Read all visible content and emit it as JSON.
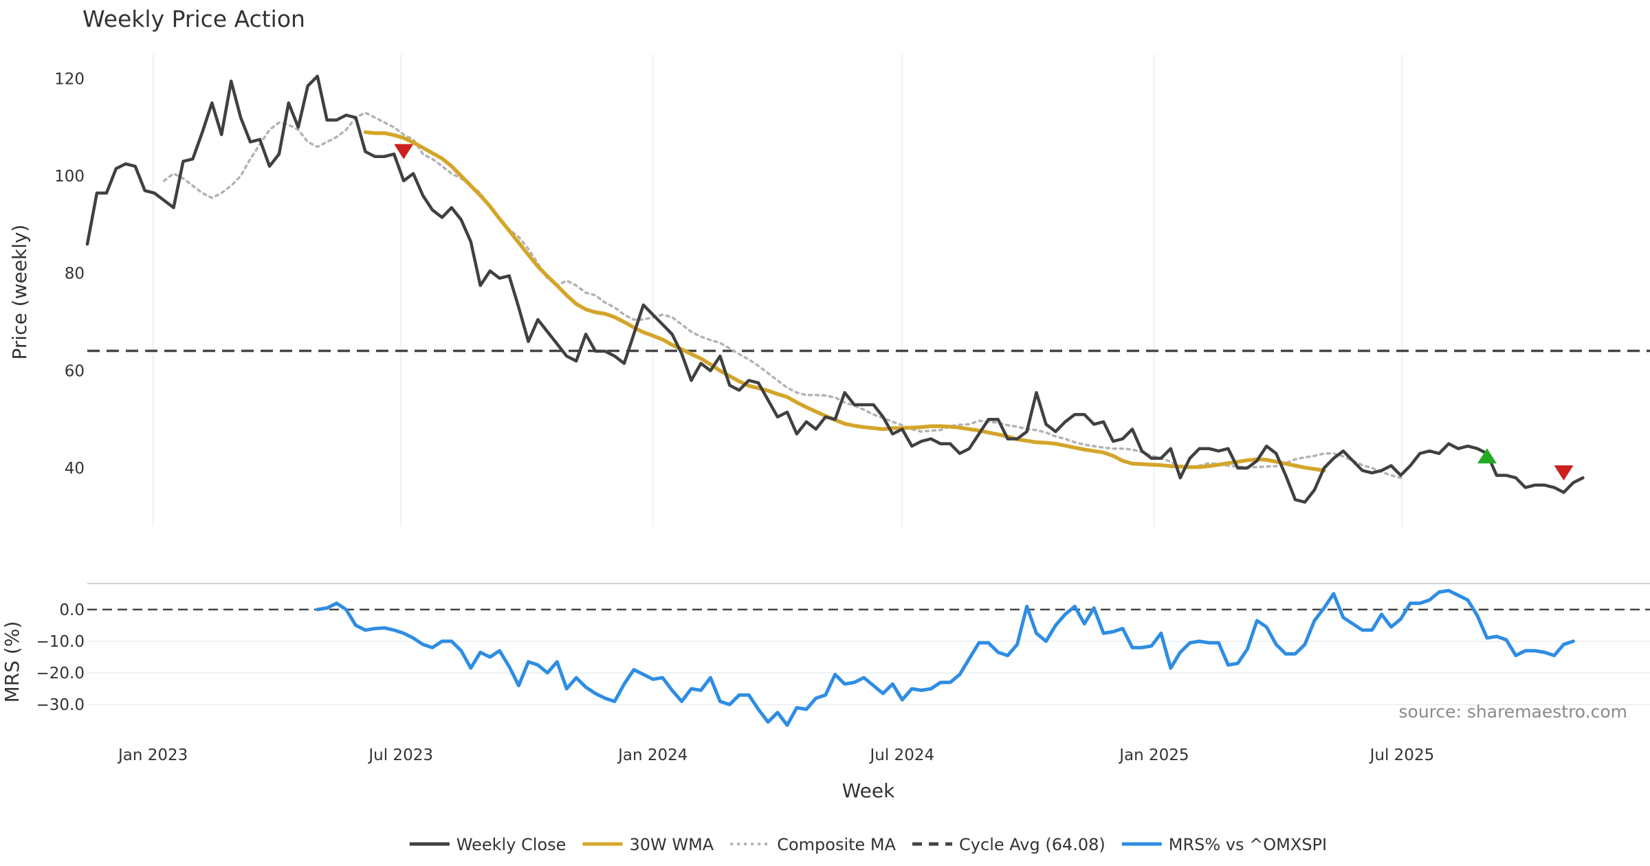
{
  "chart_data": [
    {
      "type": "line",
      "title": "Weekly Price Action",
      "xlabel": "Week",
      "ylabel": "Price (weekly)",
      "ylim": [
        28,
        125
      ],
      "yticks": [
        40,
        60,
        80,
        100,
        120
      ],
      "xlim": [
        "2022-11-14",
        "2025-12-29"
      ],
      "xticks": [
        {
          "date": "2023-01-01",
          "label": "Jan 2023"
        },
        {
          "date": "2023-07-01",
          "label": "Jul 2023"
        },
        {
          "date": "2024-01-01",
          "label": "Jan 2024"
        },
        {
          "date": "2024-07-01",
          "label": "Jul 2024"
        },
        {
          "date": "2025-01-01",
          "label": "Jan 2025"
        },
        {
          "date": "2025-07-01",
          "label": "Jul 2025"
        }
      ],
      "start_date": "2022-11-14",
      "interval_days": 7,
      "series": [
        {
          "name": "Weekly Close",
          "color": "#404040",
          "offset": 0,
          "values": [
            86,
            96.5,
            96.5,
            101.5,
            102.5,
            102,
            97,
            96.5,
            95,
            93.5,
            103,
            103.5,
            109,
            115,
            108.5,
            119.5,
            112,
            107,
            107.5,
            102,
            104.5,
            115,
            110,
            118.5,
            120.5,
            111.5,
            111.5,
            112.5,
            112,
            105,
            104,
            104,
            104.5,
            99,
            100.5,
            96,
            93,
            91.5,
            93.5,
            91,
            86.5,
            77.5,
            80.5,
            79,
            79.5,
            73,
            66,
            70.5,
            68,
            65.5,
            63,
            62,
            67.5,
            64,
            64,
            63,
            61.5,
            67.5,
            73.5,
            71.5,
            69.5,
            67.5,
            63.5,
            58,
            61.5,
            60,
            63,
            57,
            56,
            58,
            57.5,
            54,
            50.5,
            51.5,
            47,
            49.5,
            48,
            50.5,
            50,
            55.5,
            53,
            53,
            53,
            50.5,
            47,
            48,
            44.5,
            45.5,
            46,
            45,
            45,
            43,
            44,
            47,
            50,
            50,
            46,
            46,
            47.5,
            55.5,
            49,
            47.5,
            49.5,
            51,
            51,
            49,
            49.5,
            45.5,
            46,
            48,
            43.5,
            42,
            42,
            44,
            38,
            42,
            44,
            44,
            43.5,
            44,
            40,
            40,
            41.5,
            44.5,
            43,
            38.5,
            33.5,
            33,
            35.5,
            40,
            42,
            43.5,
            41.5,
            39.5,
            39,
            39.5,
            40.5,
            38.5,
            40.5,
            43,
            43.5,
            43,
            45,
            44,
            44.5,
            44,
            43,
            38.5,
            38.5,
            38,
            36,
            36.5,
            36.5,
            36,
            35,
            37,
            38
          ]
        },
        {
          "name": "30W WMA",
          "color": "#d4a52a",
          "offset": 29,
          "values": [
            109,
            108.8,
            108.8,
            108.4,
            107.8,
            106.9,
            105.8,
            104.7,
            103.6,
            102,
            100,
            98,
            96,
            93.8,
            91.2,
            88.8,
            86.3,
            83.8,
            81.4,
            79.4,
            77.5,
            75.5,
            73.7,
            72.6,
            72,
            71.7,
            71,
            70,
            68.9,
            67.9,
            67.2,
            66.4,
            65.3,
            64.4,
            63.4,
            62.5,
            61.3,
            60,
            58.9,
            57.8,
            56.9,
            56.4,
            55.9,
            55.2,
            54.6,
            53.5,
            52.5,
            51.6,
            50.7,
            49.9,
            49.1,
            48.7,
            48.4,
            48.2,
            48,
            48.2,
            48.2,
            48.3,
            48.4,
            48.6,
            48.6,
            48.5,
            48.3,
            48,
            47.7,
            47.3,
            46.9,
            46.5,
            45.9,
            45.6,
            45.3,
            45.2,
            45,
            44.6,
            44.2,
            43.8,
            43.5,
            43.2,
            42.5,
            41.5,
            40.9,
            40.8,
            40.7,
            40.6,
            40.4,
            40.3,
            40.2,
            40.2,
            40.4,
            40.7,
            41,
            41.3,
            41.6,
            41.8,
            41.7,
            41.3,
            40.9,
            40.5,
            40.1,
            39.8,
            39.5
          ]
        },
        {
          "name": "Composite MA",
          "color": "#b3b3b3",
          "offset": 8,
          "values": [
            99,
            100.5,
            99.5,
            98,
            96.5,
            95.5,
            96.5,
            98,
            100,
            103.5,
            106.5,
            109.5,
            111,
            110.5,
            109.5,
            107,
            106,
            107,
            108,
            109.5,
            112,
            113,
            112,
            111,
            110,
            108.5,
            107.5,
            104.5,
            103.5,
            102,
            100.5,
            99.5,
            98,
            96.5,
            93.5,
            91,
            89,
            87.5,
            85,
            82,
            79,
            77.5,
            78.5,
            77.5,
            76,
            75.5,
            74,
            73,
            71.5,
            70.5,
            70.5,
            71,
            71.5,
            71,
            69.5,
            68,
            67,
            66.3,
            65.7,
            64.6,
            63.4,
            62.3,
            61,
            59.5,
            58,
            56.5,
            55.5,
            55,
            55,
            54.9,
            54.5,
            53.5,
            52.8,
            52,
            51,
            50.3,
            49.5,
            48.8,
            48,
            47.5,
            47.7,
            47.8,
            48.6,
            48.9,
            49,
            49.7,
            49.5,
            49.3,
            48.8,
            48.5,
            48,
            47.8,
            47.3,
            46.5,
            46,
            45.3,
            44.8,
            44.5,
            44.2,
            44,
            44,
            43.8,
            43.3,
            42.5,
            42,
            41.3,
            40.2,
            40,
            40.5,
            41,
            40.8,
            40.5,
            40.3,
            40.2,
            40.2,
            40.3,
            40.4,
            41,
            41.8,
            42.2,
            42.5,
            43,
            43,
            42.4,
            41.5,
            40.6,
            40,
            39.2,
            38.5,
            38
          ]
        }
      ],
      "hlines": [
        {
          "name": "Cycle Avg (64.08)",
          "value": 64.08,
          "color": "#444444"
        }
      ],
      "markers": [
        {
          "type": "sell",
          "color": "#cc1f1f",
          "week": 33,
          "value": 105
        },
        {
          "type": "buy",
          "color": "#22aa22",
          "week": 146,
          "value": 42.5
        },
        {
          "type": "sell",
          "color": "#cc1f1f",
          "week": 154,
          "value": 39
        }
      ]
    },
    {
      "type": "line",
      "xlabel": "Week",
      "ylabel": "MRS (%)",
      "ylim": [
        -38,
        8
      ],
      "yticks": [
        0,
        -10,
        -20,
        -30
      ],
      "ytick_labels": [
        "0.0",
        "−10.0",
        "−20.0",
        "−30.0"
      ],
      "series": [
        {
          "name": "MRS% vs ^OMXSPI",
          "color": "#2e8de3",
          "offset": 24,
          "values": [
            0,
            0.5,
            2,
            0,
            -5,
            -6.5,
            -6,
            -5.8,
            -6.5,
            -7.5,
            -9,
            -11,
            -12,
            -10,
            -10,
            -13,
            -18.5,
            -13.5,
            -15,
            -13,
            -18,
            -24,
            -16.5,
            -17.5,
            -20,
            -16.5,
            -25,
            -21.5,
            -24.5,
            -26.5,
            -28,
            -29,
            -23.5,
            -19,
            -20.5,
            -22,
            -21.5,
            -25.5,
            -29,
            -25,
            -25.5,
            -21.5,
            -29,
            -30,
            -27,
            -27,
            -31.5,
            -35.5,
            -32.5,
            -36.5,
            -31,
            -31.5,
            -28,
            -27,
            -20.5,
            -23.5,
            -23,
            -21.5,
            -24,
            -26.5,
            -23.5,
            -28.5,
            -25,
            -25.5,
            -25,
            -23,
            -23,
            -20.5,
            -15.5,
            -10.5,
            -10.5,
            -13.5,
            -14.5,
            -11,
            1,
            -7.5,
            -10,
            -5,
            -1.5,
            1,
            -4.5,
            0.5,
            -7.5,
            -7,
            -6,
            -12,
            -12,
            -11.5,
            -7.5,
            -18.5,
            -13.5,
            -10.5,
            -10,
            -10.5,
            -10.5,
            -17.5,
            -17,
            -12.5,
            -3.5,
            -5.5,
            -11,
            -14,
            -14,
            -11,
            -3.5,
            0.5,
            5,
            -2.5,
            -4.5,
            -6.5,
            -6.5,
            -1.5,
            -5.5,
            -3,
            2,
            2,
            3,
            5.5,
            6,
            4.5,
            3,
            -2,
            -9,
            -8.5,
            -9.5,
            -14.5,
            -13,
            -13,
            -13.5,
            -14.5,
            -11,
            -10
          ]
        }
      ],
      "hlines": [
        {
          "value": 0,
          "color": "#444444"
        }
      ]
    }
  ],
  "legend": [
    {
      "label": "Weekly Close",
      "style": "solid",
      "color": "#404040"
    },
    {
      "label": "30W WMA",
      "style": "solid",
      "color": "#d4a52a"
    },
    {
      "label": "Composite MA",
      "style": "dotted",
      "color": "#b3b3b3"
    },
    {
      "label": "Cycle Avg (64.08)",
      "style": "dashed",
      "color": "#444444"
    },
    {
      "label": "MRS% vs ^OMXSPI",
      "style": "solid",
      "color": "#2e8de3"
    }
  ],
  "source": "source: sharemaestro.com"
}
